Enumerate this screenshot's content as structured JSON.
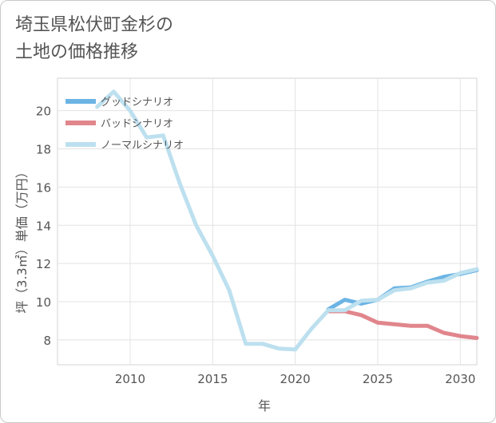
{
  "title": {
    "line1": "埼玉県松伏町金杉の",
    "line2": "土地の価格推移"
  },
  "chart_data": {
    "type": "line",
    "title": "埼玉県松伏町金杉の土地の価格推移",
    "xlabel": "年",
    "ylabel": "坪（3.3㎡）単価（万円）",
    "xlim": [
      2005.6,
      2031
    ],
    "ylim": [
      6.7,
      21.7
    ],
    "xticks": [
      2010,
      2015,
      2020,
      2025,
      2030
    ],
    "yticks": [
      8,
      10,
      12,
      14,
      16,
      18,
      20
    ],
    "legend_position": "top-left",
    "grid": true,
    "series": [
      {
        "name": "グッドシナリオ",
        "color": "#6cb4e4",
        "x": [
          2022,
          2023,
          2024,
          2025,
          2026,
          2027,
          2028,
          2029,
          2030,
          2031
        ],
        "values": [
          9.6,
          10.1,
          9.9,
          10.1,
          10.7,
          10.75,
          11.05,
          11.3,
          11.45,
          11.65
        ]
      },
      {
        "name": "バッドシナリオ",
        "color": "#e0868c",
        "x": [
          2022,
          2023,
          2024,
          2025,
          2026,
          2027,
          2028,
          2029,
          2030,
          2031
        ],
        "values": [
          9.5,
          9.5,
          9.3,
          8.9,
          8.82,
          8.74,
          8.74,
          8.37,
          8.2,
          8.1
        ]
      },
      {
        "name": "ノーマルシナリオ",
        "color": "#bde0ef",
        "x": [
          2008,
          2009,
          2010,
          2011,
          2012,
          2013,
          2014,
          2015,
          2016,
          2017,
          2018,
          2019,
          2020,
          2021,
          2022,
          2023,
          2024,
          2025,
          2026,
          2027,
          2028,
          2029,
          2030,
          2031
        ],
        "values": [
          20.2,
          21.0,
          20.0,
          18.6,
          18.7,
          16.2,
          14.0,
          12.4,
          10.6,
          7.8,
          7.8,
          7.55,
          7.5,
          8.6,
          9.55,
          9.55,
          10.05,
          10.1,
          10.6,
          10.7,
          11.0,
          11.1,
          11.5,
          11.7
        ]
      }
    ]
  }
}
